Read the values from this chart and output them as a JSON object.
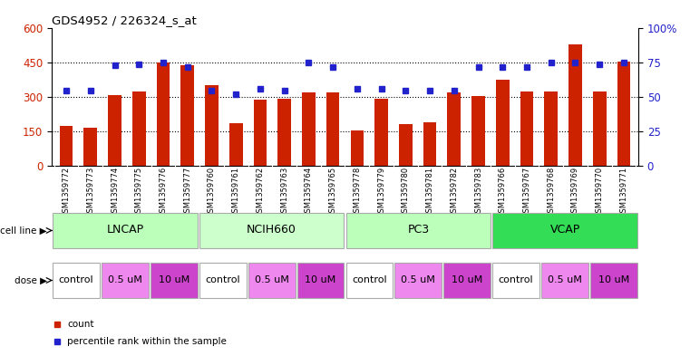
{
  "title": "GDS4952 / 226324_s_at",
  "samples": [
    "GSM1359772",
    "GSM1359773",
    "GSM1359774",
    "GSM1359775",
    "GSM1359776",
    "GSM1359777",
    "GSM1359760",
    "GSM1359761",
    "GSM1359762",
    "GSM1359763",
    "GSM1359764",
    "GSM1359765",
    "GSM1359778",
    "GSM1359779",
    "GSM1359780",
    "GSM1359781",
    "GSM1359782",
    "GSM1359783",
    "GSM1359766",
    "GSM1359767",
    "GSM1359768",
    "GSM1359769",
    "GSM1359770",
    "GSM1359771"
  ],
  "bar_values": [
    175,
    165,
    310,
    325,
    450,
    440,
    350,
    185,
    290,
    292,
    320,
    320,
    155,
    292,
    180,
    188,
    320,
    305,
    375,
    325,
    325,
    530,
    325,
    455
  ],
  "dot_values_pct": [
    55,
    55,
    73,
    74,
    75,
    72,
    55,
    52,
    56,
    55,
    75,
    72,
    56,
    56,
    55,
    55,
    55,
    72,
    72,
    72,
    75,
    75,
    74,
    75
  ],
  "bar_color": "#cc2200",
  "dot_color": "#2222cc",
  "ylim_left": [
    0,
    600
  ],
  "ylim_right": [
    0,
    100
  ],
  "yticks_left": [
    0,
    150,
    300,
    450,
    600
  ],
  "yticks_right": [
    0,
    25,
    50,
    75,
    100
  ],
  "ytick_labels_right": [
    "0",
    "25",
    "50",
    "75",
    "100%"
  ],
  "cell_lines": [
    {
      "label": "LNCAP",
      "start": 0,
      "end": 6,
      "color": "#bbffbb"
    },
    {
      "label": "NCIH660",
      "start": 6,
      "end": 12,
      "color": "#ccffcc"
    },
    {
      "label": "PC3",
      "start": 12,
      "end": 18,
      "color": "#bbffbb"
    },
    {
      "label": "VCAP",
      "start": 18,
      "end": 24,
      "color": "#33dd55"
    }
  ],
  "doses": [
    {
      "label": "control",
      "start": 0,
      "end": 2,
      "color": "#ffffff"
    },
    {
      "label": "0.5 uM",
      "start": 2,
      "end": 4,
      "color": "#ee88ee"
    },
    {
      "label": "10 uM",
      "start": 4,
      "end": 6,
      "color": "#cc44cc"
    },
    {
      "label": "control",
      "start": 6,
      "end": 8,
      "color": "#ffffff"
    },
    {
      "label": "0.5 uM",
      "start": 8,
      "end": 10,
      "color": "#ee88ee"
    },
    {
      "label": "10 uM",
      "start": 10,
      "end": 12,
      "color": "#cc44cc"
    },
    {
      "label": "control",
      "start": 12,
      "end": 14,
      "color": "#ffffff"
    },
    {
      "label": "0.5 uM",
      "start": 14,
      "end": 16,
      "color": "#ee88ee"
    },
    {
      "label": "10 uM",
      "start": 16,
      "end": 18,
      "color": "#cc44cc"
    },
    {
      "label": "control",
      "start": 18,
      "end": 20,
      "color": "#ffffff"
    },
    {
      "label": "0.5 uM",
      "start": 20,
      "end": 22,
      "color": "#ee88ee"
    },
    {
      "label": "10 uM",
      "start": 22,
      "end": 24,
      "color": "#cc44cc"
    }
  ],
  "legend_items": [
    {
      "label": "count",
      "color": "#cc2200"
    },
    {
      "label": "percentile rank within the sample",
      "color": "#2222cc"
    }
  ],
  "background_color": "#ffffff",
  "xtick_bg_color": "#cccccc",
  "cell_line_sep_color": "#aaaaaa",
  "dose_sep_color": "#aaaaaa"
}
